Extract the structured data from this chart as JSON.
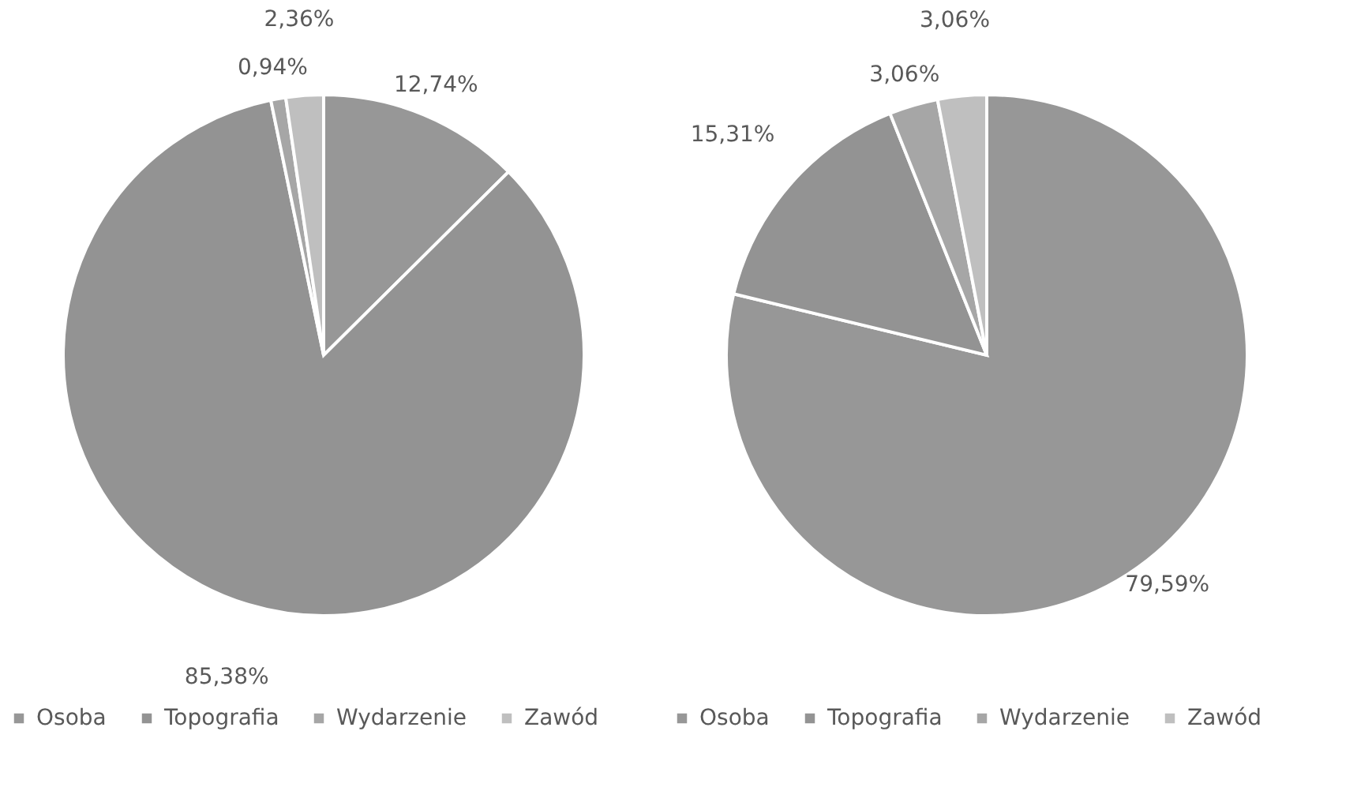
{
  "chart_data": [
    {
      "type": "pie",
      "categories": [
        "Osoba",
        "Topografia",
        "Wydarzenie",
        "Zawód"
      ],
      "values": [
        12.74,
        85.38,
        0.94,
        2.36
      ],
      "colors": [
        "#979797",
        "#939393",
        "#a6a6a6",
        "#bfbfbf"
      ],
      "value_labels": [
        "12,74%",
        "85,38%",
        "0,94%",
        "2,36%"
      ],
      "legend": "bottom"
    },
    {
      "type": "pie",
      "categories": [
        "Osoba",
        "Topografia",
        "Wydarzenie",
        "Zawód"
      ],
      "values": [
        79.59,
        15.31,
        3.06,
        3.06
      ],
      "colors": [
        "#979797",
        "#939393",
        "#a6a6a6",
        "#bfbfbf"
      ],
      "value_labels": [
        "79,59%",
        "15,31%",
        "3,06%",
        "3,06%"
      ],
      "legend": "bottom"
    }
  ]
}
